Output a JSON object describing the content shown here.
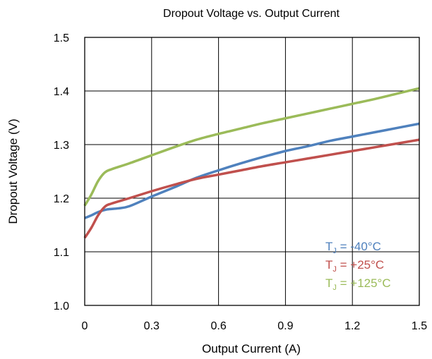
{
  "chart_data": {
    "type": "line",
    "title": "Dropout Voltage vs. Output Current",
    "xlabel": "Output Current (A)",
    "ylabel": "Dropout Voltage (V)",
    "xlim": [
      0,
      1.5
    ],
    "ylim": [
      1.0,
      1.5
    ],
    "x_ticks": [
      "0",
      "0.3",
      "0.6",
      "0.9",
      "1.2",
      "1.5"
    ],
    "y_ticks": [
      "1.0",
      "1.1",
      "1.2",
      "1.3",
      "1.4",
      "1.5"
    ],
    "grid": true,
    "legend_position": "bottom-right inside",
    "series": [
      {
        "name_prefix": "T",
        "name_sub": "J",
        "name_suffix": " = -40°C",
        "color": "#4f81bd",
        "x": [
          0.0,
          0.03,
          0.06,
          0.1,
          0.15,
          0.2,
          0.3,
          0.4,
          0.5,
          0.6,
          0.7,
          0.8,
          0.9,
          1.0,
          1.1,
          1.2,
          1.3,
          1.4,
          1.5
        ],
        "y": [
          1.163,
          1.168,
          1.174,
          1.179,
          1.181,
          1.185,
          1.203,
          1.22,
          1.238,
          1.252,
          1.265,
          1.277,
          1.288,
          1.297,
          1.307,
          1.315,
          1.323,
          1.331,
          1.339
        ]
      },
      {
        "name_prefix": "T",
        "name_sub": "J",
        "name_suffix": " = +25°C",
        "color": "#c0504d",
        "x": [
          0.0,
          0.03,
          0.06,
          0.09,
          0.12,
          0.2,
          0.3,
          0.4,
          0.5,
          0.6,
          0.7,
          0.8,
          0.9,
          1.0,
          1.1,
          1.2,
          1.3,
          1.4,
          1.5
        ],
        "y": [
          1.126,
          1.145,
          1.168,
          1.184,
          1.19,
          1.2,
          1.213,
          1.225,
          1.236,
          1.244,
          1.252,
          1.26,
          1.267,
          1.274,
          1.281,
          1.288,
          1.295,
          1.302,
          1.309
        ]
      },
      {
        "name_prefix": "T",
        "name_sub": "J",
        "name_suffix": " = +125°C",
        "color": "#9bbb59",
        "x": [
          0.0,
          0.03,
          0.06,
          0.09,
          0.12,
          0.2,
          0.3,
          0.4,
          0.5,
          0.6,
          0.7,
          0.8,
          0.9,
          1.0,
          1.1,
          1.2,
          1.3,
          1.4,
          1.5
        ],
        "y": [
          1.186,
          1.207,
          1.232,
          1.248,
          1.254,
          1.265,
          1.28,
          1.295,
          1.309,
          1.32,
          1.33,
          1.34,
          1.349,
          1.358,
          1.367,
          1.376,
          1.385,
          1.395,
          1.405
        ]
      }
    ]
  }
}
